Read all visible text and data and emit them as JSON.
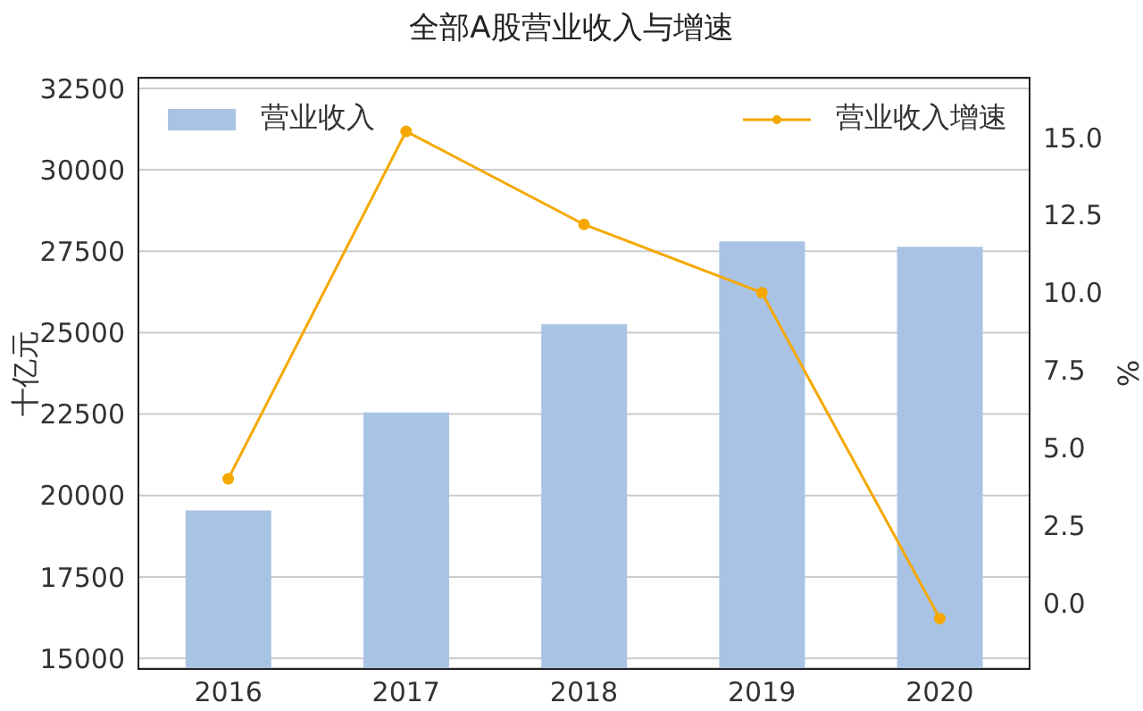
{
  "chart_data": {
    "type": "bar",
    "title": "全部A股营业收入与增速",
    "categories": [
      "2016",
      "2017",
      "2018",
      "2019",
      "2020"
    ],
    "series": [
      {
        "name": "营业收入",
        "color": "#a9c3e4",
        "values": [
          19540,
          22550,
          25260,
          27800,
          27640
        ]
      },
      {
        "name": "营业收入增速",
        "type": "line",
        "axis": "y2",
        "color": "#f5a800",
        "values": [
          4.0,
          15.2,
          12.2,
          10.0,
          -0.5
        ]
      }
    ],
    "ylabel": "十亿元",
    "y2label": "%",
    "ylim": [
      14700,
      32800
    ],
    "yticks": [
      15000,
      17500,
      20000,
      22500,
      25000,
      27500,
      30000,
      32500
    ],
    "y2lim": [
      -2.1,
      16.9
    ],
    "y2ticks": [
      {
        "value": 0,
        "label": "0.0"
      },
      {
        "value": 2.5,
        "label": "2.5"
      },
      {
        "value": 5,
        "label": "5.0"
      },
      {
        "value": 7.5,
        "label": "7.5"
      },
      {
        "value": 10,
        "label": "10.0"
      },
      {
        "value": 12.5,
        "label": "12.5"
      },
      {
        "value": 15,
        "label": "15.0"
      }
    ],
    "grid": "y",
    "legend": "top",
    "marker": "circle",
    "line_style": "solid"
  }
}
